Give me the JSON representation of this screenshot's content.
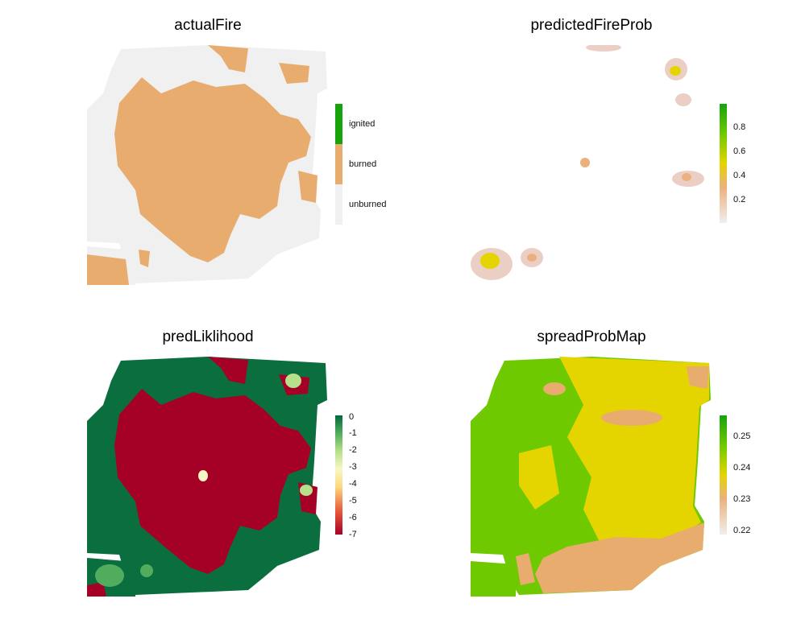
{
  "panels": [
    {
      "title": "actualFire",
      "legend": {
        "type": "categorical",
        "entries": [
          {
            "label": "ignited",
            "color": "#16a30e"
          },
          {
            "label": "burned",
            "color": "#e8ad6e"
          },
          {
            "label": "unburned",
            "color": "#f0f0f0"
          }
        ]
      }
    },
    {
      "title": "predictedFireProb",
      "legend": {
        "type": "continuous",
        "colors": [
          "#f2eeee",
          "#ebb07d",
          "#e4d500",
          "#6ec900",
          "#16a30e"
        ],
        "ticks": [
          "0.8",
          "0.6",
          "0.4",
          "0.2"
        ]
      }
    },
    {
      "title": "predLiklihood",
      "legend": {
        "type": "continuous",
        "colors": [
          "#a50026",
          "#e85b3b",
          "#fdd97f",
          "#f7f7c4",
          "#b6e08a",
          "#51ad5d",
          "#006a3c"
        ],
        "ticks": [
          "0",
          "-1",
          "-2",
          "-3",
          "-4",
          "-5",
          "-6",
          "-7"
        ]
      }
    },
    {
      "title": "spreadProbMap",
      "legend": {
        "type": "continuous",
        "colors": [
          "#f2eeee",
          "#ebb07d",
          "#e4d500",
          "#6ec900",
          "#16a30e"
        ],
        "ticks": [
          "0.25",
          "0.24",
          "0.23",
          "0.22"
        ]
      }
    }
  ],
  "colors": {
    "unburned": "#f0f0f0",
    "burned": "#e8ad6e",
    "likelihood_high": "#0b6e3f",
    "likelihood_low": "#a50026",
    "spread_green": "#6ec900",
    "spread_yellow": "#e4d500",
    "spread_tan": "#e8ad6e"
  }
}
